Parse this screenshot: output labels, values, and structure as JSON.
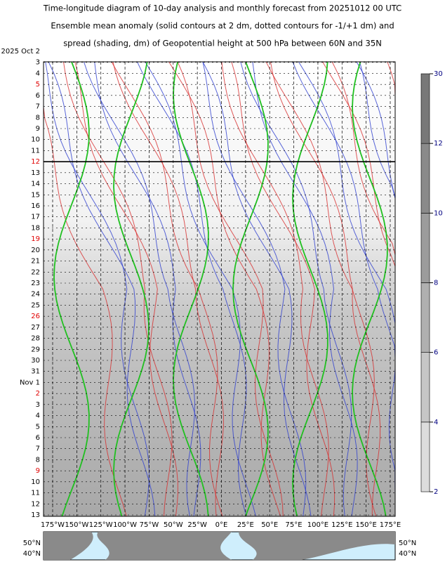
{
  "chart_data": {
    "type": "hovmoller",
    "title_lines": [
      "Time-longitude diagram of 10-day analysis and monthly forecast from 20251012 00 UTC",
      "Ensemble mean anomaly (solid contours at 2 dm, dotted contours for -1/+1 dm) and",
      "spread (shading, dm) of Geopotential height at 500 hPa between 60N and 35N"
    ],
    "dates": [
      "2025 Oct  2",
      "3",
      "4",
      "5",
      "6",
      "7",
      "8",
      "9",
      "10",
      "11",
      "12",
      "13",
      "14",
      "15",
      "16",
      "17",
      "18",
      "19",
      "20",
      "21",
      "22",
      "23",
      "24",
      "25",
      "26",
      "27",
      "28",
      "29",
      "30",
      "31",
      "Nov  1",
      "2",
      "3",
      "4",
      "5",
      "6",
      "7",
      "8",
      "9",
      "10",
      "11",
      "12",
      "13"
    ],
    "date_colors": [
      "#000",
      "#000",
      "#000",
      "#e00000",
      "#000",
      "#000",
      "#000",
      "#000",
      "#000",
      "#000",
      "#e00000",
      "#000",
      "#000",
      "#000",
      "#000",
      "#000",
      "#000",
      "#e00000",
      "#000",
      "#000",
      "#000",
      "#000",
      "#000",
      "#000",
      "#e00000",
      "#000",
      "#000",
      "#000",
      "#000",
      "#000",
      "#000",
      "#e00000",
      "#000",
      "#000",
      "#000",
      "#000",
      "#000",
      "#000",
      "#e00000",
      "#000",
      "#000",
      "#000",
      "#000"
    ],
    "longitudes": [
      "175°W",
      "150°W",
      "125°W",
      "100°W",
      "75°W",
      "50°W",
      "25°W",
      "0°E",
      "25°E",
      "50°E",
      "75°E",
      "100°E",
      "125°E",
      "150°E",
      "175°E"
    ],
    "colorbar": {
      "ticks": [
        2,
        4,
        6,
        8,
        10,
        12,
        30
      ],
      "label_color": "#000080"
    },
    "map": {
      "lat_labels": [
        "50°N",
        "40°N"
      ]
    }
  }
}
